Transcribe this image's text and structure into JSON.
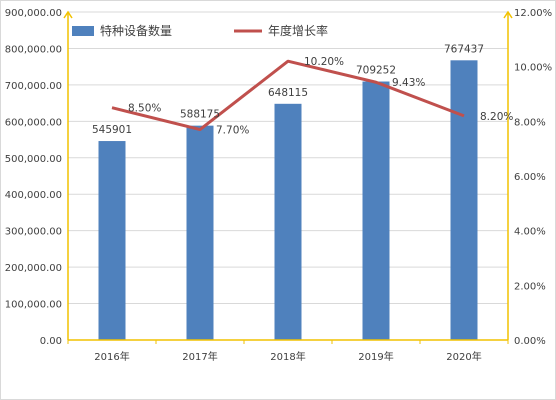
{
  "chart_data": {
    "type": "bar+line",
    "categories": [
      "2016年",
      "2017年",
      "2018年",
      "2019年",
      "2020年"
    ],
    "series": [
      {
        "name": "特种设备数量",
        "type": "bar",
        "axis": "left",
        "values": [
          545901,
          588175,
          648115,
          709252,
          767437
        ],
        "labels": [
          "545901",
          "588175",
          "648115",
          "709252",
          "767437"
        ],
        "color": "#4f81bd"
      },
      {
        "name": "年度增长率",
        "type": "line",
        "axis": "right",
        "values": [
          8.5,
          7.7,
          10.2,
          9.43,
          8.2
        ],
        "labels": [
          "8.50%",
          "7.70%",
          "10.20%",
          "9.43%",
          "8.20%"
        ],
        "color": "#c0504d"
      }
    ],
    "left_axis": {
      "ylim": [
        0,
        900000
      ],
      "ticks": [
        0,
        100000,
        200000,
        300000,
        400000,
        500000,
        600000,
        700000,
        800000,
        900000
      ],
      "tick_labels": [
        "0.00",
        "100,000.00",
        "200,000.00",
        "300,000.00",
        "400,000.00",
        "500,000.00",
        "600,000.00",
        "700,000.00",
        "800,000.00",
        "900,000.00"
      ]
    },
    "right_axis": {
      "ylim": [
        0,
        12
      ],
      "ticks": [
        0,
        2,
        4,
        6,
        8,
        10,
        12
      ],
      "tick_labels": [
        "0.00%",
        "2.00%",
        "4.00%",
        "6.00%",
        "8.00%",
        "10.00%",
        "12.00%"
      ]
    },
    "axis_color": "#f2c200",
    "grid": true,
    "legend": "top"
  }
}
